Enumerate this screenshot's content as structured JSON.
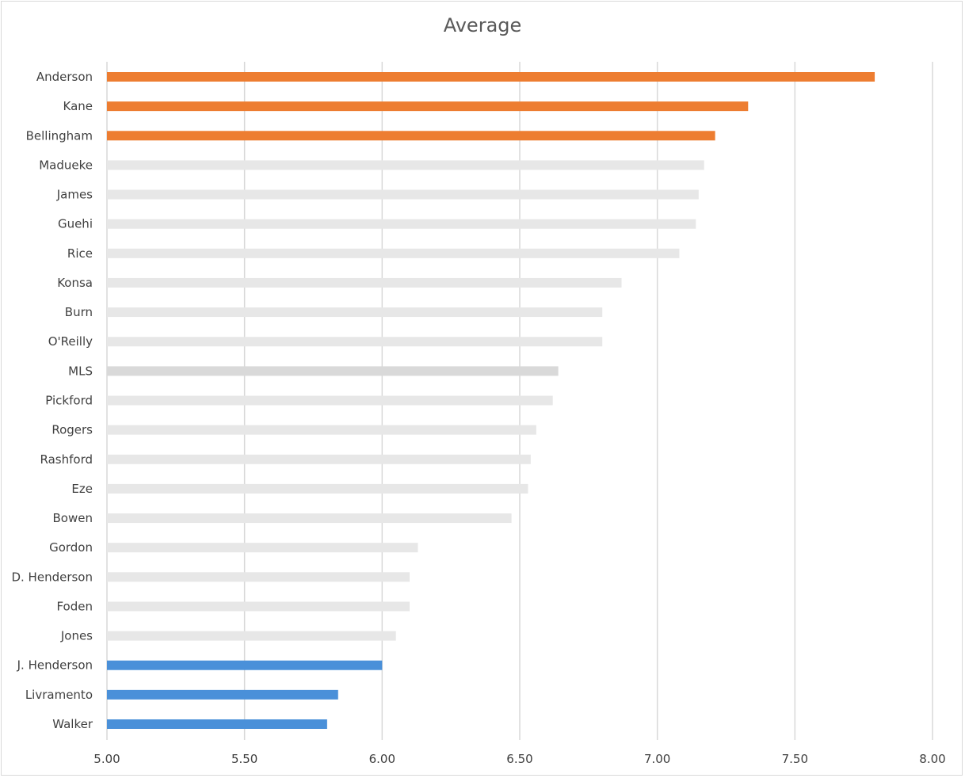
{
  "chart_data": {
    "type": "bar",
    "orientation": "horizontal",
    "title": "Average",
    "xlim": [
      5.0,
      8.0
    ],
    "x_ticks": [
      "5.00",
      "5.50",
      "6.00",
      "6.50",
      "7.00",
      "7.50",
      "8.00"
    ],
    "grid": "vertical",
    "categories": [
      "Anderson",
      "Kane",
      "Bellingham",
      "Madueke",
      "James",
      "Guehi",
      "Rice",
      "Konsa",
      "Burn",
      "O'Reilly",
      "MLS",
      "Pickford",
      "Rogers",
      "Rashford",
      "Eze",
      "Bowen",
      "Gordon",
      "D. Henderson",
      "Foden",
      "Jones",
      "J. Henderson",
      "Livramento",
      "Walker"
    ],
    "values": [
      7.79,
      7.33,
      7.21,
      7.17,
      7.15,
      7.14,
      7.08,
      6.87,
      6.8,
      6.8,
      6.64,
      6.62,
      6.56,
      6.54,
      6.53,
      6.47,
      6.13,
      6.1,
      6.1,
      6.05,
      6.0,
      5.84,
      5.8
    ],
    "bar_colors": [
      "#ed7d31",
      "#ed7d31",
      "#ed7d31",
      "#e7e7e7",
      "#e7e7e7",
      "#e7e7e7",
      "#e7e7e7",
      "#e7e7e7",
      "#e7e7e7",
      "#e7e7e7",
      "#d9d9d9",
      "#e7e7e7",
      "#e7e7e7",
      "#e7e7e7",
      "#e7e7e7",
      "#e7e7e7",
      "#e7e7e7",
      "#e7e7e7",
      "#e7e7e7",
      "#e7e7e7",
      "#4a90d9",
      "#4a90d9",
      "#4a90d9"
    ]
  }
}
